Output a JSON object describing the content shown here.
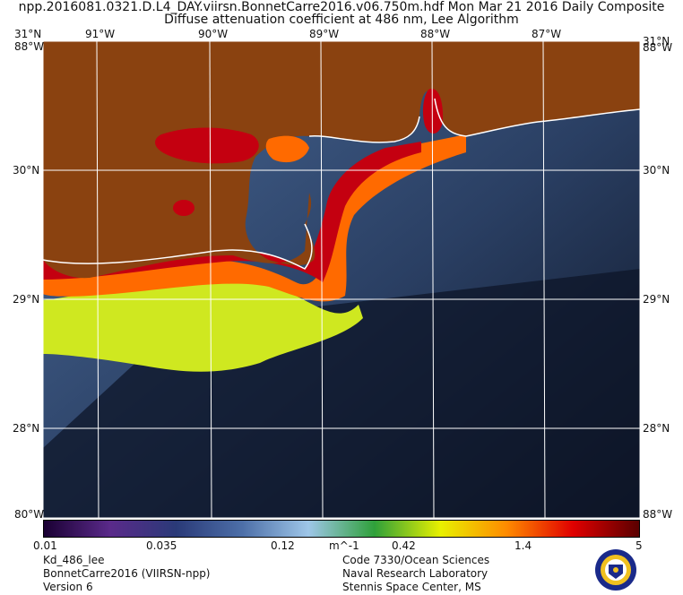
{
  "header": {
    "line1": "npp.2016081.0321.D.L4_DAY.viirsn.BonnetCarre2016.v06.750m.hdf    Mon Mar 21 2016 Daily Composite",
    "line2": "Diffuse attenuation coefficient at 486 nm, Lee Algorithm"
  },
  "map": {
    "lon_labels": [
      "91°W",
      "90°W",
      "89°W",
      "88°W",
      "87°W"
    ],
    "lat_labels": [
      "30°N",
      "29°N",
      "28°N"
    ],
    "corner_top": "31°N",
    "corner_left_top": "88°W",
    "corner_bottom": "88°W",
    "corner_left_bottom": "80°W",
    "colors": {
      "land": "#8a4210",
      "offshore_water": "#0e1628",
      "clear_water": "#3e5a85",
      "turbid_high": "#c40010",
      "turbid_mid": "#ff6a00",
      "turbid_low": "#cfe820",
      "coastline": "#ffffff",
      "graticule": "#ffffff"
    }
  },
  "colorbar": {
    "ticks": [
      "0.01",
      "0.035",
      "0.12",
      "m^-1",
      "0.42",
      "1.4",
      "5"
    ],
    "colors": [
      "#1a0033",
      "#5a2a8a",
      "#2a3a78",
      "#4d6fa8",
      "#9ec6e8",
      "#2fa03a",
      "#e8f000",
      "#ff8a00",
      "#e00000",
      "#5a0000"
    ]
  },
  "footer": {
    "left": [
      "Kd_486_lee",
      "BonnetCarre2016 (VIIRSN-npp)",
      "Version 6"
    ],
    "right": [
      "Code 7330/Ocean Sciences",
      "Naval Research Laboratory",
      "Stennis Space Center, MS"
    ]
  }
}
